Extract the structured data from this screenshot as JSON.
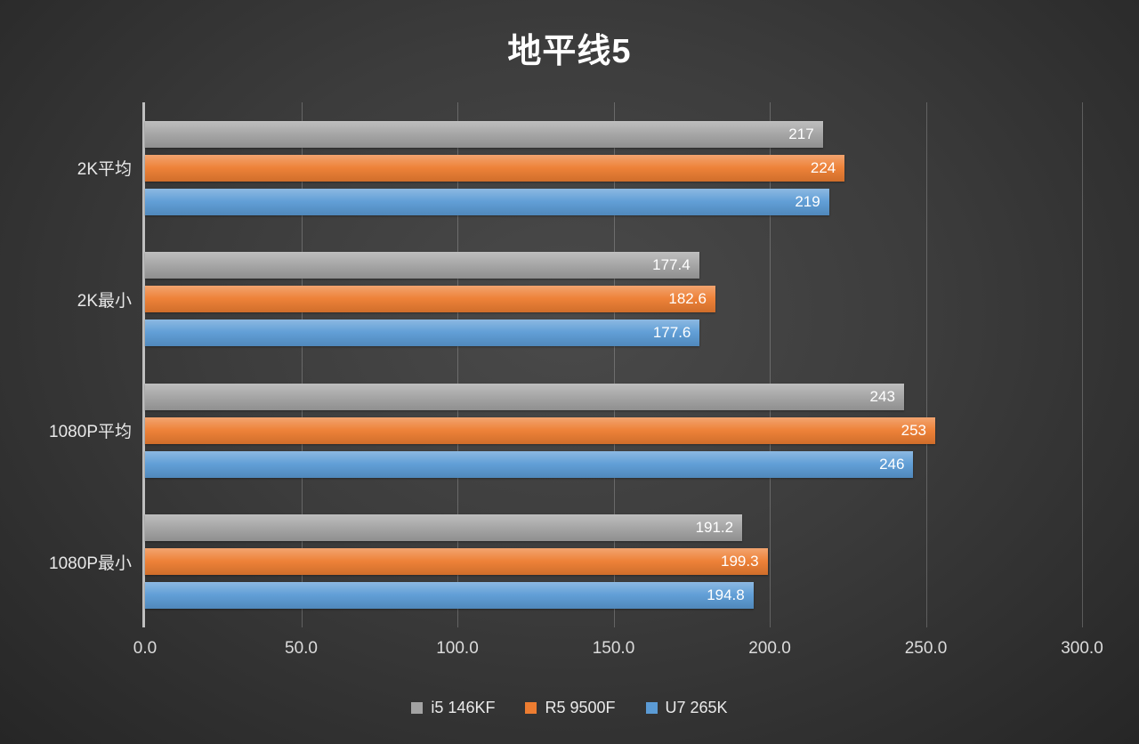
{
  "chart_data": {
    "type": "bar",
    "orientation": "horizontal",
    "title": "地平线5",
    "categories": [
      "2K平均",
      "2K最小",
      "1080P平均",
      "1080P最小"
    ],
    "series": [
      {
        "name": "i5 146KF",
        "color": "#a3a3a3",
        "values": [
          217,
          177.4,
          243,
          191.2
        ],
        "labels": [
          "217",
          "177.4",
          "243",
          "191.2"
        ]
      },
      {
        "name": "R5 9500F",
        "color": "#ed7d31",
        "values": [
          224,
          182.6,
          253,
          199.3
        ],
        "labels": [
          "224",
          "182.6",
          "253",
          "199.3"
        ]
      },
      {
        "name": "U7 265K",
        "color": "#5b9bd5",
        "values": [
          219,
          177.6,
          246,
          194.8
        ],
        "labels": [
          "219",
          "177.6",
          "246",
          "194.8"
        ]
      }
    ],
    "xlim": [
      0,
      300
    ],
    "tick_values": [
      0,
      50,
      100,
      150,
      200,
      250,
      300
    ],
    "x_tick_labels": [
      "0.0",
      "50.0",
      "100.0",
      "150.0",
      "200.0",
      "250.0",
      "300.0"
    ],
    "grid": true,
    "legend_position": "bottom"
  }
}
